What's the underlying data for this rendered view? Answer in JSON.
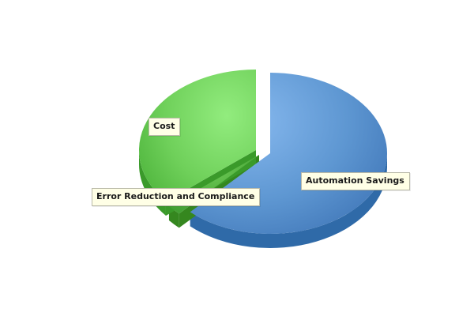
{
  "chart_data": {
    "type": "pie",
    "title": "",
    "slices": [
      {
        "label": "Automation Savings",
        "value": 62,
        "color": "#5b94d0"
      },
      {
        "label": "Error Reduction and Compliance",
        "value": 2,
        "color": "#4aa838"
      },
      {
        "label": "Cost",
        "value": 36,
        "color": "#6fd05a"
      }
    ],
    "style": "3d-exploded"
  }
}
